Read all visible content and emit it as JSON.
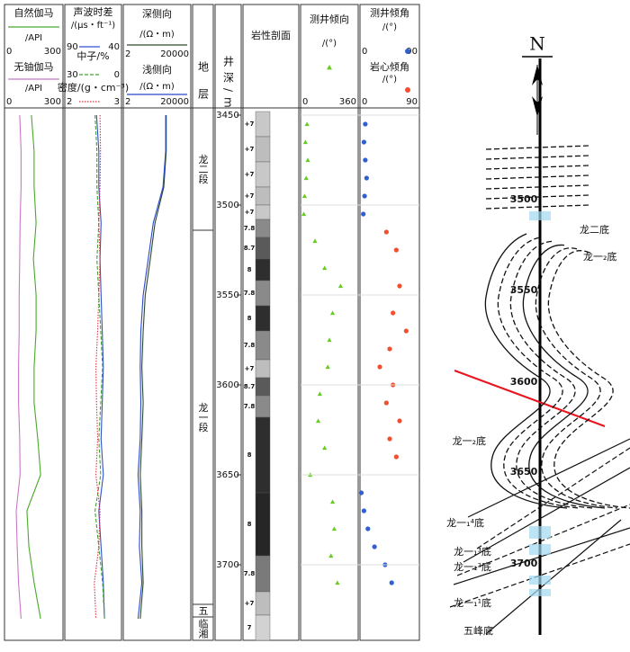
{
  "chart_data": {
    "type": "well-log",
    "ylim": [
      3446,
      3742
    ],
    "yticks": [
      3450,
      3500,
      3550,
      3600,
      3650,
      3700
    ],
    "depth_label": "井深/m",
    "strata_label": "地层",
    "lithology_label": "岩性剖面",
    "depths": [
      3450,
      3470,
      3490,
      3510,
      3530,
      3550,
      3570,
      3590,
      3610,
      3630,
      3650,
      3670,
      3690,
      3710,
      3730
    ],
    "tracks": [
      {
        "series": [
          {
            "name": "自然伽马",
            "unit": "/API",
            "xlim": [
              0,
              300
            ],
            "color": "#4aa82a",
            "line_style": "solid",
            "values": [
              138,
              152,
              152,
              162,
              148,
              162,
              162,
              152,
              152,
              171,
              185,
              115,
              125,
              152,
              185
            ]
          },
          {
            "name": "无铀伽马",
            "unit": "/API",
            "xlim": [
              0,
              300
            ],
            "color": "#c878c8",
            "line_style": "solid",
            "values": [
              78,
              85,
              85,
              80,
              78,
              75,
              75,
              72,
              72,
              78,
              80,
              60,
              65,
              72,
              85
            ]
          }
        ]
      },
      {
        "series": [
          {
            "name": "声波时差",
            "unit": "/(μs・ft⁻¹)",
            "xlim": [
              90,
              40
            ],
            "color": "#3050d0",
            "line_style": "solid",
            "values": [
              62,
              60,
              60,
              58,
              59,
              58,
              57,
              56,
              57,
              58,
              56,
              60,
              58,
              56,
              55
            ]
          },
          {
            "name": "中子/%",
            "xlim": [
              30,
              0
            ],
            "color": "#40a030",
            "line_style": "dashed",
            "values": [
              14,
              13,
              13,
              12,
              13,
              12,
              11,
              10,
              11,
              12,
              11,
              14,
              12,
              10,
              9
            ]
          },
          {
            "name": "密度/(g・cm⁻³)",
            "xlim": [
              2,
              3
            ],
            "color": "#e03040",
            "line_style": "dotted",
            "values": [
              2.62,
              2.63,
              2.62,
              2.6,
              2.62,
              2.6,
              2.58,
              2.55,
              2.56,
              2.58,
              2.55,
              2.62,
              2.6,
              2.52,
              2.55
            ]
          }
        ]
      },
      {
        "series": [
          {
            "name": "深侧向",
            "unit": "/(Ω・m)",
            "xlim": [
              2,
              20000
            ],
            "log": true,
            "color": "#2a4a2a",
            "line_style": "solid",
            "values": [
              700,
              700,
              500,
              150,
              80,
              40,
              30,
              25,
              30,
              25,
              20,
              25,
              25,
              30,
              20
            ]
          },
          {
            "name": "浅侧向",
            "unit": "/(Ω・m)",
            "xlim": [
              2,
              20000
            ],
            "log": true,
            "color": "#2848c8",
            "line_style": "solid",
            "values": [
              650,
              650,
              450,
              120,
              60,
              30,
              22,
              20,
              22,
              20,
              15,
              20,
              18,
              25,
              15
            ]
          }
        ]
      },
      {
        "series": [
          {
            "name": "测井倾向",
            "unit": "/(°)",
            "xlim": [
              0,
              360
            ],
            "color": "#66cc22",
            "marker": "triangle",
            "depths": [
              3455,
              3465,
              3475,
              3485,
              3495,
              3505,
              3520,
              3535,
              3545,
              3560,
              3575,
              3590,
              3605,
              3620,
              3635,
              3650,
              3665,
              3680,
              3695,
              3710
            ],
            "values": [
              40,
              30,
              45,
              35,
              25,
              20,
              90,
              150,
              250,
              200,
              180,
              170,
              120,
              110,
              150,
              60,
              200,
              210,
              190,
              230
            ]
          }
        ]
      },
      {
        "series": [
          {
            "name": "测井倾角",
            "unit": "/(°)",
            "xlim": [
              0,
              90
            ],
            "color": "#3060d0",
            "marker": "circle",
            "depths": [
              3455,
              3465,
              3475,
              3485,
              3495,
              3505,
              3660,
              3670,
              3680,
              3690,
              3700,
              3710
            ],
            "values": [
              8,
              6,
              8,
              10,
              7,
              5,
              2,
              6,
              12,
              22,
              38,
              48
            ]
          },
          {
            "name": "岩心倾角",
            "unit": "/(°)",
            "xlim": [
              0,
              90
            ],
            "color": "#f05030",
            "marker": "circle",
            "depths": [
              3515,
              3525,
              3545,
              3560,
              3570,
              3580,
              3590,
              3600,
              3610,
              3620,
              3630,
              3640
            ],
            "values": [
              40,
              55,
              60,
              50,
              70,
              45,
              30,
              50,
              40,
              60,
              45,
              55
            ]
          }
        ]
      }
    ],
    "formations": [
      {
        "label": "龙二段",
        "top": 3446,
        "bottom": 3514
      },
      {
        "label": "龙一段",
        "top": 3514,
        "bottom": 3722
      },
      {
        "label": "五",
        "top": 3722,
        "bottom": 3729
      },
      {
        "label": "临湘",
        "top": 3729,
        "bottom": 3742
      }
    ],
    "lithology": [
      {
        "top": 3448,
        "label": "+7",
        "color": "#c8c8c8"
      },
      {
        "top": 3462,
        "label": "+7",
        "color": "#bdbdbd"
      },
      {
        "top": 3476,
        "label": "+7",
        "color": "#c8c8c8"
      },
      {
        "top": 3490,
        "label": "+7",
        "color": "#bdbdbd"
      },
      {
        "top": 3500,
        "label": "+7",
        "color": "#c8c8c8"
      },
      {
        "top": 3508,
        "label": "7.8",
        "color": "#8a8a8a"
      },
      {
        "top": 3518,
        "label": "8.7",
        "color": "#5a5a5a"
      },
      {
        "top": 3530,
        "label": "8",
        "color": "#2e2e2e"
      },
      {
        "top": 3542,
        "label": "7.8",
        "color": "#8a8a8a"
      },
      {
        "top": 3556,
        "label": "8",
        "color": "#2e2e2e"
      },
      {
        "top": 3570,
        "label": "7.8",
        "color": "#8a8a8a"
      },
      {
        "top": 3586,
        "label": "+7",
        "color": "#bdbdbd"
      },
      {
        "top": 3596,
        "label": "8.7",
        "color": "#5a5a5a"
      },
      {
        "top": 3606,
        "label": "7.8",
        "color": "#8a8a8a"
      },
      {
        "top": 3618,
        "label": "8",
        "color": "#2e2e2e"
      },
      {
        "top": 3660,
        "label": "8",
        "color": "#262626"
      },
      {
        "top": 3695,
        "label": "7.8",
        "color": "#7a7a7a"
      },
      {
        "top": 3715,
        "label": "+7",
        "color": "#bdbdbd"
      },
      {
        "top": 3728,
        "label": "7",
        "color": "#d2d2d2"
      }
    ]
  },
  "section": {
    "north": "N",
    "depth_labels": [
      3500,
      3550,
      3600,
      3650,
      3700
    ],
    "boundaries": [
      "龙二底",
      "龙一₂底",
      "龙一₂底",
      "龙一₁⁴底",
      "龙一₁³底",
      "龙一₁²底",
      "龙一₁¹底",
      "五峰底"
    ]
  }
}
